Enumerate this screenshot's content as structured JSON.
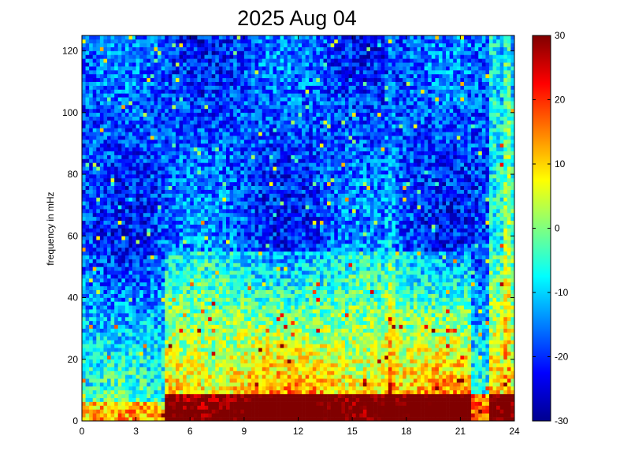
{
  "chart_data": {
    "type": "heatmap",
    "title": "2025 Aug 04",
    "xlabel": "",
    "ylabel": "frequency in mHz",
    "xlim": [
      0,
      24
    ],
    "ylim": [
      0,
      125
    ],
    "x_ticks": [
      "0",
      "3",
      "6",
      "9",
      "12",
      "15",
      "18",
      "21",
      "24"
    ],
    "y_ticks": [
      "0",
      "20",
      "40",
      "60",
      "80",
      "100",
      "120"
    ],
    "colorbar": {
      "colormap": "jet",
      "range": [
        -30,
        30
      ],
      "ticks": [
        "-30",
        "-20",
        "-10",
        "0",
        "10",
        "20",
        "30"
      ]
    },
    "grid": false,
    "x_resolution_hours": 0.2,
    "y_resolution_mHz": 1.25,
    "features": [
      {
        "description": "strong low-frequency band below ~8 mHz from about hour 4.5 to 24",
        "value_range": [
          15,
          30
        ]
      },
      {
        "description": "broad elevated region between ~10 and ~55 mHz from hour 4.5 to 21",
        "value_range": [
          0,
          20
        ]
      },
      {
        "description": "vertical bright streak near hour 17",
        "value_range": [
          0,
          25
        ]
      },
      {
        "description": "elevated column from hour 22.5 to 24",
        "value_range": [
          -5,
          30
        ]
      },
      {
        "description": "background above ~60 mHz",
        "value_range": [
          -25,
          -10
        ]
      }
    ]
  }
}
